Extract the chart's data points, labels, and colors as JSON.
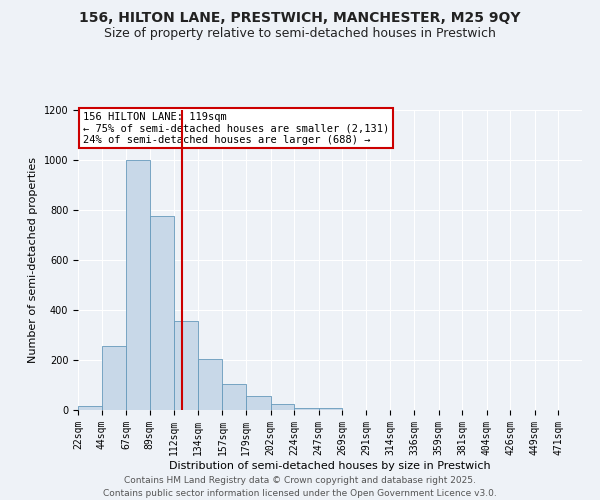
{
  "title": "156, HILTON LANE, PRESTWICH, MANCHESTER, M25 9QY",
  "subtitle": "Size of property relative to semi-detached houses in Prestwich",
  "xlabel": "Distribution of semi-detached houses by size in Prestwich",
  "ylabel": "Number of semi-detached properties",
  "bin_labels": [
    "22sqm",
    "44sqm",
    "67sqm",
    "89sqm",
    "112sqm",
    "134sqm",
    "157sqm",
    "179sqm",
    "202sqm",
    "224sqm",
    "247sqm",
    "269sqm",
    "291sqm",
    "314sqm",
    "336sqm",
    "359sqm",
    "381sqm",
    "404sqm",
    "426sqm",
    "449sqm",
    "471sqm"
  ],
  "bin_edges": [
    22,
    44,
    67,
    89,
    112,
    134,
    157,
    179,
    202,
    224,
    247,
    269,
    291,
    314,
    336,
    359,
    381,
    404,
    426,
    449,
    471
  ],
  "bar_heights": [
    15,
    258,
    1000,
    775,
    355,
    205,
    105,
    55,
    25,
    10,
    10,
    0,
    0,
    0,
    0,
    0,
    0,
    0,
    0,
    0,
    0
  ],
  "bar_color": "#c8d8e8",
  "bar_edge_color": "#6699bb",
  "vline_x": 119,
  "vline_color": "#cc0000",
  "annotation_title": "156 HILTON LANE: 119sqm",
  "annotation_line1": "← 75% of semi-detached houses are smaller (2,131)",
  "annotation_line2": "24% of semi-detached houses are larger (688) →",
  "annotation_box_facecolor": "#ffffff",
  "annotation_box_edgecolor": "#cc0000",
  "ylim": [
    0,
    1200
  ],
  "yticks": [
    0,
    200,
    400,
    600,
    800,
    1000,
    1200
  ],
  "footer_line1": "Contains HM Land Registry data © Crown copyright and database right 2025.",
  "footer_line2": "Contains public sector information licensed under the Open Government Licence v3.0.",
  "background_color": "#eef2f7",
  "plot_background_color": "#eef2f7",
  "grid_color": "#ffffff",
  "title_fontsize": 10,
  "subtitle_fontsize": 9,
  "axis_label_fontsize": 8,
  "tick_fontsize": 7,
  "annotation_fontsize": 7.5,
  "footer_fontsize": 6.5
}
